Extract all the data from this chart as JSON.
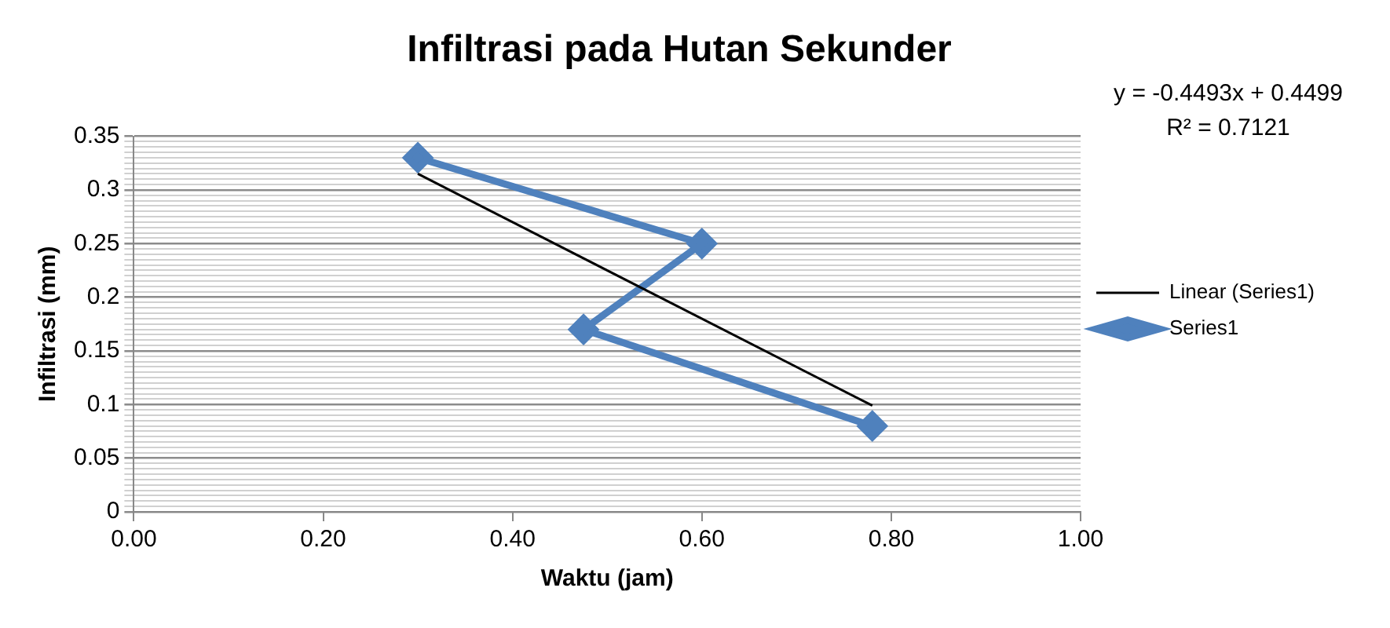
{
  "chart_data": {
    "type": "line",
    "title": "Infiltrasi pada Hutan Sekunder",
    "xlabel": "Waktu (jam)",
    "ylabel": "Infiltrasi (mm)",
    "series": [
      {
        "name": "Series1",
        "color": "#4f81bd",
        "x": [
          0.3,
          0.6,
          0.475,
          0.78
        ],
        "values": [
          0.33,
          0.25,
          0.17,
          0.08
        ],
        "marker": "diamond"
      },
      {
        "name": "Linear (Series1)",
        "type": "line",
        "color": "#000000",
        "x": [
          0.3,
          0.78
        ],
        "values": [
          0.315,
          0.099
        ],
        "marker": "none"
      }
    ],
    "xlim": [
      0,
      1
    ],
    "xticks": [
      {
        "value": 0,
        "label": "0.00"
      },
      {
        "value": 0.2,
        "label": "0.20"
      },
      {
        "value": 0.4,
        "label": "0.40"
      },
      {
        "value": 0.6,
        "label": "0.60"
      },
      {
        "value": 0.8,
        "label": "0.80"
      },
      {
        "value": 1,
        "label": "1.00"
      }
    ],
    "ylim": [
      0,
      0.35
    ],
    "yticks": [
      0,
      {
        "value": 0.005,
        "label": null
      },
      {
        "value": 0.01,
        "label": null
      },
      {
        "value": 0.015,
        "label": null
      },
      {
        "value": 0.02,
        "label": null
      },
      {
        "value": 0.025,
        "label": null
      },
      {
        "value": 0.03,
        "label": null
      },
      {
        "value": 0.035,
        "label": null
      },
      {
        "value": 0.04,
        "label": null
      },
      {
        "value": 0.045,
        "label": null
      },
      0.05,
      {
        "value": 0.055,
        "label": null
      },
      {
        "value": 0.06,
        "label": null
      },
      {
        "value": 0.065,
        "label": null
      },
      {
        "value": 0.07,
        "label": null
      },
      {
        "value": 0.075,
        "label": null
      },
      {
        "value": 0.08,
        "label": null
      },
      {
        "value": 0.085,
        "label": null
      },
      {
        "value": 0.09,
        "label": null
      },
      {
        "value": 0.095,
        "label": null
      },
      0.1,
      {
        "value": 0.105,
        "label": null
      },
      {
        "value": 0.11,
        "label": null
      },
      {
        "value": 0.115,
        "label": null
      },
      {
        "value": 0.12,
        "label": null
      },
      {
        "value": 0.125,
        "label": null
      },
      {
        "value": 0.13,
        "label": null
      },
      {
        "value": 0.135,
        "label": null
      },
      {
        "value": 0.14,
        "label": null
      },
      {
        "value": 0.145,
        "label": null
      },
      0.15,
      {
        "value": 0.155,
        "label": null
      },
      {
        "value": 0.16,
        "label": null
      },
      {
        "value": 0.165,
        "label": null
      },
      {
        "value": 0.17,
        "label": null
      },
      {
        "value": 0.175,
        "label": null
      },
      {
        "value": 0.18,
        "label": null
      },
      {
        "value": 0.185,
        "label": null
      },
      {
        "value": 0.19,
        "label": null
      },
      {
        "value": 0.195,
        "label": null
      },
      0.2,
      {
        "value": 0.205,
        "label": null
      },
      {
        "value": 0.21,
        "label": null
      },
      {
        "value": 0.215,
        "label": null
      },
      {
        "value": 0.22,
        "label": null
      },
      {
        "value": 0.225,
        "label": null
      },
      {
        "value": 0.23,
        "label": null
      },
      {
        "value": 0.235,
        "label": null
      },
      {
        "value": 0.24,
        "label": null
      },
      {
        "value": 0.245,
        "label": null
      },
      0.25,
      {
        "value": 0.255,
        "label": null
      },
      {
        "value": 0.26,
        "label": null
      },
      {
        "value": 0.265,
        "label": null
      },
      {
        "value": 0.27,
        "label": null
      },
      {
        "value": 0.275,
        "label": null
      },
      {
        "value": 0.28,
        "label": null
      },
      {
        "value": 0.285,
        "label": null
      },
      {
        "value": 0.29,
        "label": null
      },
      {
        "value": 0.295,
        "label": null
      },
      0.3,
      {
        "value": 0.305,
        "label": null
      },
      {
        "value": 0.31,
        "label": null
      },
      {
        "value": 0.315,
        "label": null
      },
      {
        "value": 0.32,
        "label": null
      },
      {
        "value": 0.325,
        "label": null
      },
      {
        "value": 0.33,
        "label": null
      },
      {
        "value": 0.335,
        "label": null
      },
      {
        "value": 0.34,
        "label": null
      },
      {
        "value": 0.345,
        "label": null
      },
      0.35
    ],
    "grid": "y",
    "legend": "right",
    "line_style": "solid",
    "annotations": [
      "y = -0.4493x + 0.4499",
      "R² = 0.7121"
    ]
  }
}
